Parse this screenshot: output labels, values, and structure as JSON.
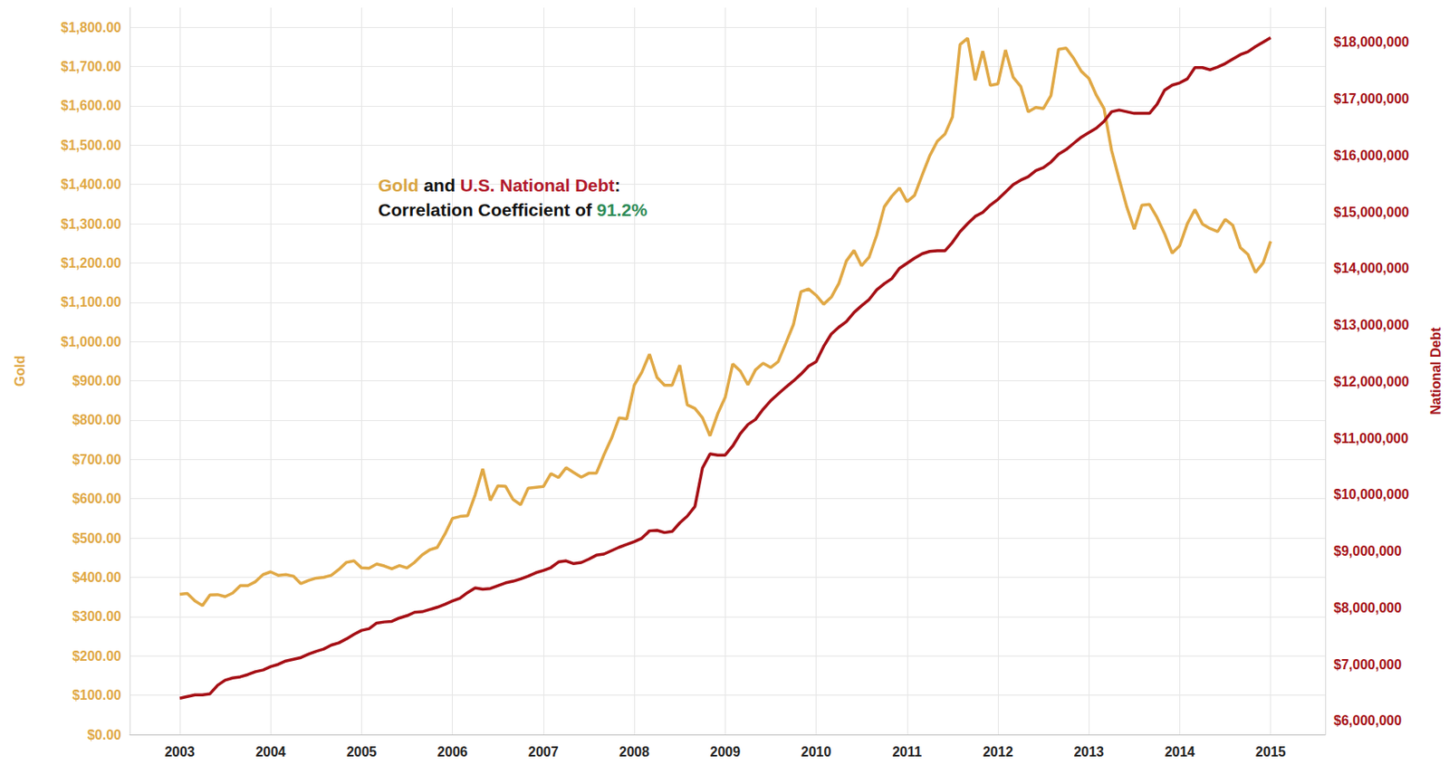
{
  "chart_data": {
    "type": "line",
    "grid": true,
    "ylabel": "Gold",
    "y2label": "National Debt",
    "annotation": [
      [
        {
          "text": "Gold",
          "color": "#D9A441"
        },
        {
          "text": " and "
        },
        {
          "text": "U.S. National Debt",
          "color": "#B2182B"
        },
        {
          "text": ":"
        }
      ],
      [
        {
          "text": "Correlation Coefficient of "
        },
        {
          "text": "91.2%",
          "color": "#2E8B57"
        }
      ]
    ],
    "x": [
      2003,
      2003.083,
      2003.167,
      2003.25,
      2003.333,
      2003.417,
      2003.5,
      2003.583,
      2003.667,
      2003.75,
      2003.833,
      2003.917,
      2004,
      2004.083,
      2004.167,
      2004.25,
      2004.333,
      2004.417,
      2004.5,
      2004.583,
      2004.667,
      2004.75,
      2004.833,
      2004.917,
      2005,
      2005.083,
      2005.167,
      2005.25,
      2005.333,
      2005.417,
      2005.5,
      2005.583,
      2005.667,
      2005.75,
      2005.833,
      2005.917,
      2006,
      2006.083,
      2006.167,
      2006.25,
      2006.333,
      2006.417,
      2006.5,
      2006.583,
      2006.667,
      2006.75,
      2006.833,
      2006.917,
      2007,
      2007.083,
      2007.167,
      2007.25,
      2007.333,
      2007.417,
      2007.5,
      2007.583,
      2007.667,
      2007.75,
      2007.833,
      2007.917,
      2008,
      2008.083,
      2008.167,
      2008.25,
      2008.333,
      2008.417,
      2008.5,
      2008.583,
      2008.667,
      2008.75,
      2008.833,
      2008.917,
      2009,
      2009.083,
      2009.167,
      2009.25,
      2009.333,
      2009.417,
      2009.5,
      2009.583,
      2009.667,
      2009.75,
      2009.833,
      2009.917,
      2010,
      2010.083,
      2010.167,
      2010.25,
      2010.333,
      2010.417,
      2010.5,
      2010.583,
      2010.667,
      2010.75,
      2010.833,
      2010.917,
      2011,
      2011.083,
      2011.167,
      2011.25,
      2011.333,
      2011.417,
      2011.5,
      2011.583,
      2011.667,
      2011.75,
      2011.833,
      2011.917,
      2012,
      2012.083,
      2012.167,
      2012.25,
      2012.333,
      2012.417,
      2012.5,
      2012.583,
      2012.667,
      2012.75,
      2012.833,
      2012.917,
      2013,
      2013.083,
      2013.167,
      2013.25,
      2013.333,
      2013.417,
      2013.5,
      2013.583,
      2013.667,
      2013.75,
      2013.833,
      2013.917,
      2014,
      2014.083,
      2014.167,
      2014.25,
      2014.333,
      2014.417,
      2014.5,
      2014.583,
      2014.667,
      2014.75,
      2014.833,
      2014.917,
      2015
    ],
    "xlim": [
      2002.45,
      2015.6
    ],
    "xticks": [
      2003,
      2004,
      2005,
      2006,
      2007,
      2008,
      2009,
      2010,
      2011,
      2012,
      2013,
      2014,
      2015
    ],
    "ylim": [
      0,
      1850
    ],
    "yticks": [
      {
        "value": 0,
        "label": "$0.00"
      },
      {
        "value": 100,
        "label": "$100.00"
      },
      {
        "value": 200,
        "label": "$200.00"
      },
      {
        "value": 300,
        "label": "$300.00"
      },
      {
        "value": 400,
        "label": "$400.00"
      },
      {
        "value": 500,
        "label": "$500.00"
      },
      {
        "value": 600,
        "label": "$600.00"
      },
      {
        "value": 700,
        "label": "$700.00"
      },
      {
        "value": 800,
        "label": "$800.00"
      },
      {
        "value": 900,
        "label": "$900.00"
      },
      {
        "value": 1000,
        "label": "$1,000.00"
      },
      {
        "value": 1100,
        "label": "$1,100.00"
      },
      {
        "value": 1200,
        "label": "$1,200.00"
      },
      {
        "value": 1300,
        "label": "$1,300.00"
      },
      {
        "value": 1400,
        "label": "$1,400.00"
      },
      {
        "value": 1500,
        "label": "$1,500.00"
      },
      {
        "value": 1600,
        "label": "$1,600.00"
      },
      {
        "value": 1700,
        "label": "$1,700.00"
      },
      {
        "value": 1800,
        "label": "$1,800.00"
      }
    ],
    "y2lim": [
      5760000,
      18610000
    ],
    "y2ticks": [
      {
        "value": 6000000,
        "label": "$6,000,000"
      },
      {
        "value": 7000000,
        "label": "$7,000,000"
      },
      {
        "value": 8000000,
        "label": "$8,000,000"
      },
      {
        "value": 9000000,
        "label": "$9,000,000"
      },
      {
        "value": 10000000,
        "label": "$10,000,000"
      },
      {
        "value": 11000000,
        "label": "$11,000,000"
      },
      {
        "value": 12000000,
        "label": "$12,000,000"
      },
      {
        "value": 13000000,
        "label": "$13,000,000"
      },
      {
        "value": 14000000,
        "label": "$14,000,000"
      },
      {
        "value": 15000000,
        "label": "$15,000,000"
      },
      {
        "value": 16000000,
        "label": "$16,000,000"
      },
      {
        "value": 17000000,
        "label": "$17,000,000"
      },
      {
        "value": 18000000,
        "label": "$18,000,000"
      }
    ],
    "series": [
      {
        "color": "#E0A845",
        "values": [
          357,
          359,
          340,
          328,
          355,
          356,
          351,
          360,
          379,
          379,
          389,
          407,
          414,
          405,
          407,
          403,
          384,
          392,
          398,
          400,
          405,
          420,
          438,
          442,
          424,
          423,
          434,
          429,
          422,
          430,
          424,
          438,
          457,
          470,
          476,
          510,
          550,
          555,
          557,
          610,
          676,
          596,
          633,
          632,
          598,
          585,
          627,
          629,
          631,
          664,
          654,
          679,
          667,
          655,
          665,
          665,
          712,
          754,
          806,
          803,
          889,
          922,
          968,
          909,
          889,
          889,
          940,
          839,
          830,
          806,
          760,
          816,
          858,
          943,
          925,
          890,
          928,
          945,
          934,
          949,
          996,
          1043,
          1127,
          1134,
          1118,
          1095,
          1113,
          1148,
          1205,
          1232,
          1193,
          1215,
          1271,
          1343,
          1370,
          1391,
          1356,
          1372,
          1424,
          1473,
          1510,
          1528,
          1572,
          1756,
          1772,
          1665,
          1739,
          1652,
          1656,
          1742,
          1673,
          1650,
          1585,
          1596,
          1593,
          1626,
          1744,
          1747,
          1721,
          1688,
          1670,
          1627,
          1593,
          1487,
          1414,
          1343,
          1286,
          1347,
          1349,
          1316,
          1275,
          1225,
          1244,
          1300,
          1336,
          1299,
          1288,
          1280,
          1311,
          1296,
          1239,
          1222,
          1176,
          1200,
          1255
        ]
      },
      {
        "color": "#A50F15",
        "axis": "y2",
        "values": [
          6400000,
          6430000,
          6460000,
          6460000,
          6480000,
          6630000,
          6720000,
          6760000,
          6780000,
          6820000,
          6870000,
          6900000,
          6960000,
          7000000,
          7060000,
          7090000,
          7120000,
          7180000,
          7230000,
          7270000,
          7340000,
          7380000,
          7450000,
          7530000,
          7600000,
          7630000,
          7730000,
          7750000,
          7760000,
          7820000,
          7860000,
          7920000,
          7930000,
          7970000,
          8010000,
          8060000,
          8120000,
          8170000,
          8270000,
          8350000,
          8330000,
          8340000,
          8390000,
          8440000,
          8470000,
          8510000,
          8560000,
          8620000,
          8660000,
          8710000,
          8810000,
          8830000,
          8780000,
          8800000,
          8860000,
          8930000,
          8950000,
          9010000,
          9070000,
          9120000,
          9170000,
          9230000,
          9360000,
          9370000,
          9330000,
          9350000,
          9500000,
          9620000,
          9790000,
          10470000,
          10720000,
          10700000,
          10700000,
          10860000,
          11080000,
          11240000,
          11330000,
          11510000,
          11660000,
          11780000,
          11900000,
          12010000,
          12130000,
          12270000,
          12350000,
          12620000,
          12840000,
          12960000,
          13060000,
          13220000,
          13340000,
          13450000,
          13620000,
          13730000,
          13820000,
          14000000,
          14090000,
          14180000,
          14260000,
          14300000,
          14310000,
          14310000,
          14460000,
          14650000,
          14790000,
          14920000,
          14990000,
          15120000,
          15220000,
          15350000,
          15480000,
          15560000,
          15620000,
          15730000,
          15780000,
          15880000,
          16020000,
          16100000,
          16210000,
          16320000,
          16400000,
          16480000,
          16600000,
          16770000,
          16800000,
          16770000,
          16740000,
          16740000,
          16740000,
          16900000,
          17150000,
          17240000,
          17280000,
          17350000,
          17550000,
          17550000,
          17510000,
          17560000,
          17620000,
          17700000,
          17780000,
          17830000,
          17920000,
          18000000,
          18080000
        ]
      }
    ]
  }
}
